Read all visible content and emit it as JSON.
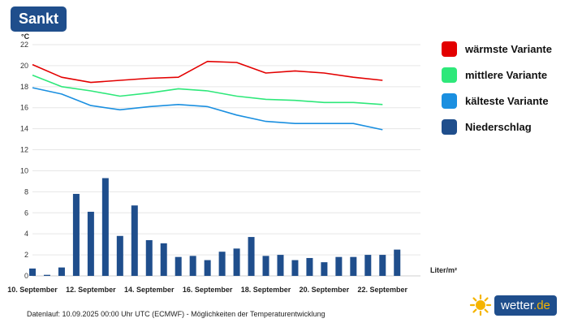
{
  "header": {
    "location": "Sankt"
  },
  "chart_data": {
    "type": "line+bar",
    "y_unit_temp": "°C",
    "y_unit_precip": "Liter/m²",
    "ylim": [
      0,
      22
    ],
    "yticks": [
      0,
      2,
      4,
      6,
      8,
      10,
      12,
      14,
      16,
      18,
      20,
      22
    ],
    "grid": true,
    "x_tick_labels": [
      "10. September",
      "12. September",
      "14. September",
      "16. September",
      "18. September",
      "20. September",
      "22. September"
    ],
    "x_tick_days": [
      10,
      12,
      14,
      16,
      18,
      20,
      22
    ],
    "x_range_days": [
      10,
      23.3
    ],
    "series": [
      {
        "name": "wärmste Variante",
        "type": "line",
        "color": "#e30000",
        "x": [
          10,
          11,
          12,
          13,
          14,
          15,
          16,
          17,
          18,
          19,
          20,
          21,
          22
        ],
        "values": [
          20.1,
          18.9,
          18.4,
          18.6,
          18.8,
          18.9,
          20.4,
          20.3,
          19.3,
          19.5,
          19.3,
          18.9,
          18.6
        ]
      },
      {
        "name": "mittlere Variante",
        "type": "line",
        "color": "#2ee87a",
        "x": [
          10,
          11,
          12,
          13,
          14,
          15,
          16,
          17,
          18,
          19,
          20,
          21,
          22
        ],
        "values": [
          19.1,
          18.0,
          17.6,
          17.1,
          17.4,
          17.8,
          17.6,
          17.1,
          16.8,
          16.7,
          16.5,
          16.5,
          16.3
        ]
      },
      {
        "name": "kälteste Variante",
        "type": "line",
        "color": "#1a8fe0",
        "x": [
          10,
          11,
          12,
          13,
          14,
          15,
          16,
          17,
          18,
          19,
          20,
          21,
          22
        ],
        "values": [
          17.9,
          17.3,
          16.2,
          15.8,
          16.1,
          16.3,
          16.1,
          15.3,
          14.7,
          14.5,
          14.5,
          14.5,
          13.9
        ]
      },
      {
        "name": "Niederschlag",
        "type": "bar",
        "color": "#1f4e8c",
        "x": [
          10.0,
          10.5,
          11.0,
          11.5,
          12.0,
          12.5,
          13.0,
          13.5,
          14.0,
          14.5,
          15.0,
          15.5,
          16.0,
          16.5,
          17.0,
          17.5,
          18.0,
          18.5,
          19.0,
          19.5,
          20.0,
          20.5,
          21.0,
          21.5,
          22.0,
          22.5
        ],
        "values": [
          0.7,
          0.1,
          0.8,
          7.8,
          6.1,
          9.3,
          3.8,
          6.7,
          3.4,
          3.1,
          1.8,
          1.9,
          1.5,
          2.3,
          2.6,
          3.7,
          1.9,
          2.0,
          1.5,
          1.7,
          1.3,
          1.8,
          1.8,
          2.0,
          2.0,
          2.5
        ]
      }
    ]
  },
  "legend": [
    {
      "label": "wärmste Variante",
      "color": "#e30000"
    },
    {
      "label": "mittlere Variante",
      "color": "#2ee87a"
    },
    {
      "label": "kälteste Variante",
      "color": "#1a8fe0"
    },
    {
      "label": "Niederschlag",
      "color": "#1f4e8c"
    }
  ],
  "footer": {
    "text": "Datenlauf: 10.09.2025 00:00 Uhr UTC (ECMWF) - Möglichkeiten der Temperaturentwicklung"
  },
  "logo": {
    "name": "wetter",
    "tld": ".de",
    "icon": "sun-icon"
  }
}
